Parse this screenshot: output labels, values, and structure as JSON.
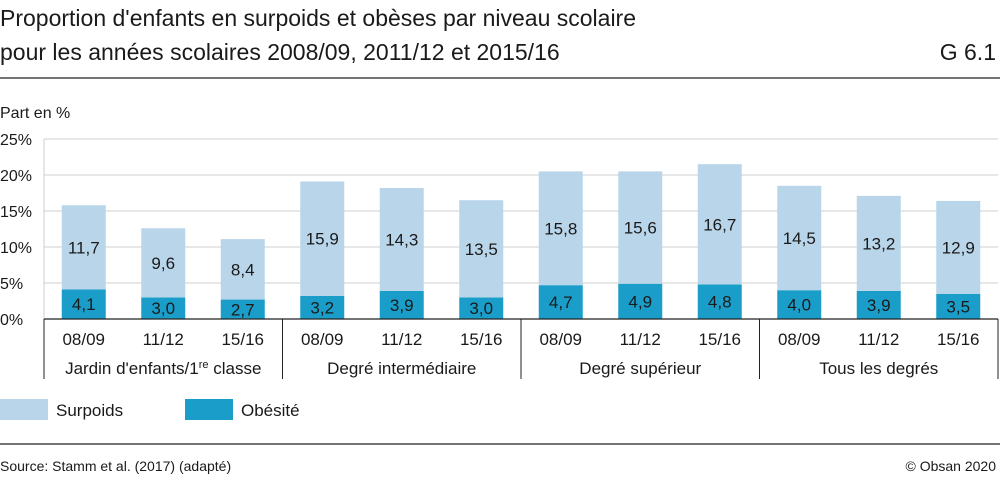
{
  "header": {
    "title_line1": "Proportion d'enfants en surpoids et obèses par niveau scolaire",
    "title_line2": "pour les années scolaires 2008/09, 2011/12 et 2015/16",
    "figure_id": "G 6.1"
  },
  "footer": {
    "source": "Source: Stamm et al. (2017) (adapté)",
    "copyright": "© Obsan 2020"
  },
  "chart_data": {
    "type": "bar",
    "stacked": true,
    "ylabel": "Part en %",
    "ylim": [
      0,
      25
    ],
    "yticks": [
      "0%",
      "5%",
      "10%",
      "15%",
      "20%",
      "25%"
    ],
    "grid": true,
    "legend_position": "bottom-left",
    "groups": [
      {
        "label_main": "Jardin d'enfants/1",
        "label_sup": "re",
        "label_end": " classe",
        "categories": [
          "08/09",
          "11/12",
          "15/16"
        ]
      },
      {
        "label": "Degré intermédiaire",
        "categories": [
          "08/09",
          "11/12",
          "15/16"
        ]
      },
      {
        "label": "Degré supérieur",
        "categories": [
          "08/09",
          "11/12",
          "15/16"
        ]
      },
      {
        "label": "Tous les degrés",
        "categories": [
          "08/09",
          "11/12",
          "15/16"
        ]
      }
    ],
    "series": [
      {
        "name": "Obésité",
        "color": "#1a9ec9",
        "values": [
          4.1,
          3.0,
          2.7,
          3.2,
          3.9,
          3.0,
          4.7,
          4.9,
          4.8,
          4.0,
          3.9,
          3.5
        ],
        "labels": [
          "4,1",
          "3,0",
          "2,7",
          "3,2",
          "3,9",
          "3,0",
          "4,7",
          "4,9",
          "4,8",
          "4,0",
          "3,9",
          "3,5"
        ]
      },
      {
        "name": "Surpoids",
        "color": "#b9d5ea",
        "values": [
          11.7,
          9.6,
          8.4,
          15.9,
          14.3,
          13.5,
          15.8,
          15.6,
          16.7,
          14.5,
          13.2,
          12.9
        ],
        "labels": [
          "11,7",
          "9,6",
          "8,4",
          "15,9",
          "14,3",
          "13,5",
          "15,8",
          "15,6",
          "16,7",
          "14,5",
          "13,2",
          "12,9"
        ]
      }
    ],
    "legend": [
      {
        "name": "Surpoids",
        "color": "#b9d5ea"
      },
      {
        "name": "Obésité",
        "color": "#1a9ec9"
      }
    ]
  }
}
